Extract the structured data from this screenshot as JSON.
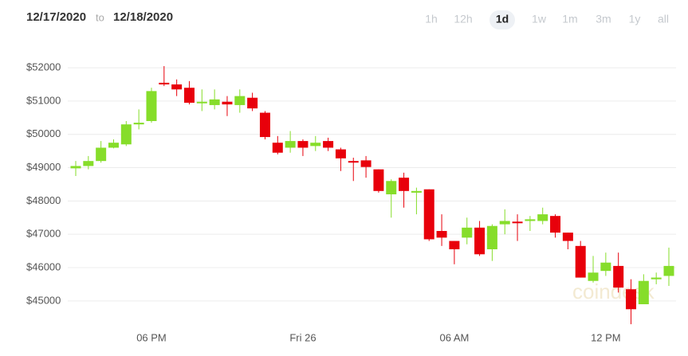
{
  "chart_data": {
    "type": "candlestick",
    "date_from": "12/17/2020",
    "date_separator": "to",
    "date_to": "12/18/2020",
    "ranges": [
      "1h",
      "12h",
      "1d",
      "1w",
      "1m",
      "3m",
      "1y",
      "all"
    ],
    "selected_range": "1d",
    "watermark": "coindesk",
    "categories": [
      null,
      null,
      null,
      null,
      null,
      null,
      "06 PM",
      null,
      null,
      null,
      null,
      null,
      null,
      null,
      null,
      null,
      null,
      null,
      "Fri 26",
      null,
      null,
      null,
      null,
      null,
      null,
      null,
      null,
      null,
      null,
      null,
      "06 AM",
      null,
      null,
      null,
      null,
      null,
      null,
      null,
      null,
      null,
      null,
      null,
      "12 PM",
      null,
      null,
      null,
      null,
      null
    ],
    "open": [
      48980,
      49050,
      49200,
      49600,
      49700,
      50300,
      50400,
      51550,
      51500,
      51400,
      50950,
      50880,
      50980,
      50880,
      51100,
      50650,
      49750,
      49600,
      49800,
      49650,
      49800,
      49550,
      49200,
      49220,
      48950,
      48200,
      48700,
      48250,
      48350,
      47100,
      46800,
      46900,
      47200,
      46550,
      47300,
      47380,
      47400,
      47400,
      47550,
      47050,
      46650,
      45600,
      45900,
      46050,
      45350,
      44900,
      45650,
      45750
    ],
    "high": [
      49200,
      49350,
      49800,
      49850,
      50400,
      50750,
      51400,
      52050,
      51650,
      51600,
      51350,
      51350,
      51150,
      51350,
      51250,
      50700,
      49950,
      50100,
      49850,
      49950,
      49900,
      49600,
      49300,
      49350,
      48950,
      48650,
      48850,
      48400,
      48350,
      47600,
      46800,
      47500,
      47400,
      47300,
      47750,
      47600,
      47550,
      47800,
      47600,
      47050,
      46800,
      46350,
      46450,
      46450,
      45650,
      45800,
      45850,
      46600
    ],
    "low": [
      48750,
      48950,
      49150,
      49580,
      49650,
      50150,
      50350,
      51450,
      51150,
      50900,
      50700,
      50750,
      50550,
      50650,
      50700,
      49850,
      49400,
      49450,
      49350,
      49500,
      49500,
      48900,
      48600,
      48700,
      48250,
      47500,
      47800,
      47600,
      46800,
      46650,
      46100,
      46700,
      46350,
      46200,
      47000,
      46800,
      47100,
      47300,
      46900,
      46550,
      45700,
      45550,
      45750,
      45250,
      44300,
      44900,
      45500,
      45450
    ],
    "close": [
      49050,
      49200,
      49600,
      49750,
      50300,
      50350,
      51300,
      51500,
      51350,
      50950,
      50980,
      51050,
      50900,
      51150,
      50780,
      49920,
      49450,
      49800,
      49600,
      49750,
      49600,
      49280,
      49180,
      49020,
      48300,
      48600,
      48300,
      48300,
      46850,
      46900,
      46550,
      47200,
      46400,
      47250,
      47400,
      47350,
      47450,
      47600,
      47050,
      46800,
      45700,
      45850,
      46150,
      45400,
      44750,
      45600,
      45700,
      46050
    ],
    "up_color": "#86dd2a",
    "down_color": "#e8000b",
    "ylim": [
      44350,
      52600
    ],
    "yticks": [
      {
        "value": 45000,
        "label": "$45000"
      },
      {
        "value": 46000,
        "label": "$46000"
      },
      {
        "value": 47000,
        "label": "$47000"
      },
      {
        "value": 48000,
        "label": "$48000"
      },
      {
        "value": 49000,
        "label": "$49000"
      },
      {
        "value": 50000,
        "label": "$50000"
      },
      {
        "value": 51000,
        "label": "$51000"
      },
      {
        "value": 52000,
        "label": "$52000"
      }
    ],
    "grid": true
  }
}
